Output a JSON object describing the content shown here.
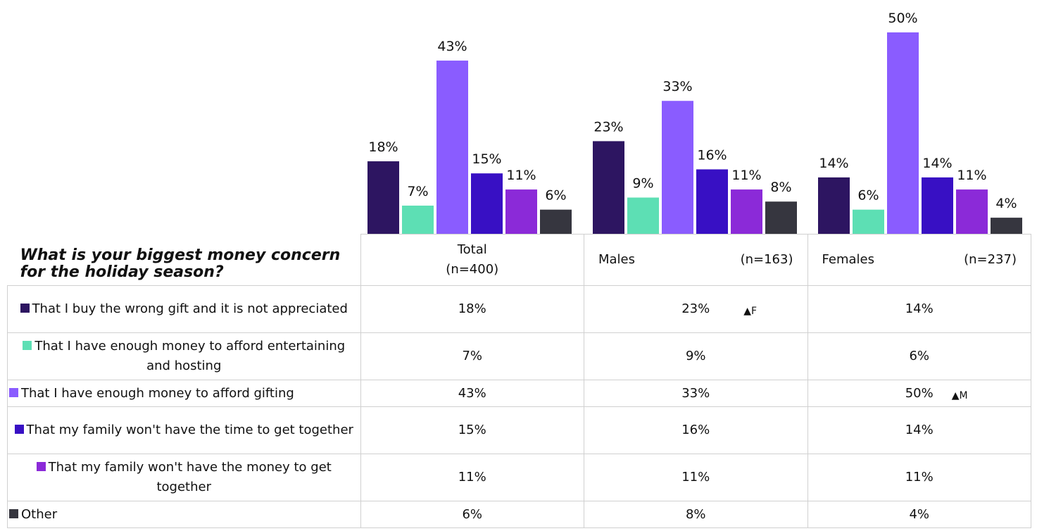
{
  "chart_data": {
    "type": "bar",
    "title": "What is your biggest money concern for the holiday season?",
    "categories": [
      "Total",
      "Males",
      "Females"
    ],
    "category_notes": [
      "(n=400)",
      "(n=163)",
      "(n=237)"
    ],
    "series": [
      {
        "name": "That I buy the wrong gift and it is not appreciated",
        "color": "#2d1561",
        "values": [
          18,
          23,
          14
        ],
        "value_labels": [
          "18%",
          "23%",
          "14%"
        ],
        "markers": [
          null,
          "▲F",
          null
        ]
      },
      {
        "name": "That I have enough money to afford entertaining and hosting",
        "color": "#5ddfb4",
        "values": [
          7,
          9,
          6
        ],
        "value_labels": [
          "7%",
          "9%",
          "6%"
        ]
      },
      {
        "name": "That I have enough money to afford gifting",
        "color": "#8a5cff",
        "values": [
          43,
          33,
          50
        ],
        "value_labels": [
          "43%",
          "33%",
          "50%"
        ],
        "markers": [
          null,
          null,
          "▲M"
        ]
      },
      {
        "name": "That my family won't have the time to get together",
        "color": "#3810c4",
        "values": [
          15,
          16,
          14
        ],
        "value_labels": [
          "15%",
          "16%",
          "14%"
        ]
      },
      {
        "name": "That my family won't have the money to get together",
        "color": "#8b2ad8",
        "values": [
          11,
          11,
          11
        ],
        "value_labels": [
          "11%",
          "11%",
          "11%"
        ]
      },
      {
        "name": "Other",
        "color": "#36363f",
        "values": [
          6,
          8,
          4
        ],
        "value_labels": [
          "6%",
          "8%",
          "4%"
        ]
      }
    ]
  }
}
